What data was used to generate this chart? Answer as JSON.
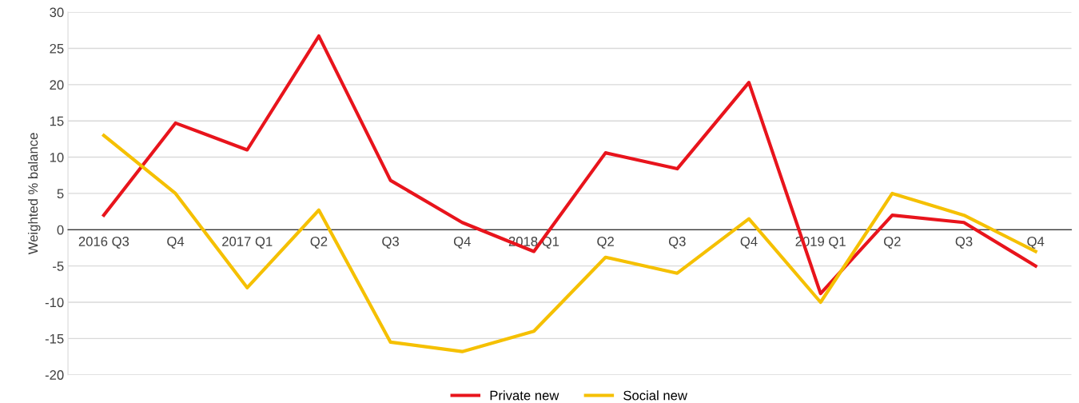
{
  "chart_data": {
    "type": "line",
    "ylabel": "Weighted % balance",
    "categories": [
      "2016 Q3",
      "Q4",
      "2017 Q1",
      "Q2",
      "Q3",
      "Q4",
      "2018 Q1",
      "Q2",
      "Q3",
      "Q4",
      "2019 Q1",
      "Q2",
      "Q3",
      "Q4"
    ],
    "series": [
      {
        "name": "Private new",
        "color": "#e8141c",
        "values": [
          2,
          14.7,
          11,
          26.7,
          6.8,
          1,
          -3,
          10.6,
          8.4,
          20.3,
          -8.8,
          2,
          1,
          -5
        ]
      },
      {
        "name": "Social new",
        "color": "#f5c000",
        "values": [
          13,
          5,
          -8,
          2.7,
          -15.5,
          -16.8,
          -14,
          -3.8,
          -6,
          1.5,
          -10,
          5,
          2,
          -3
        ]
      }
    ],
    "ylim": [
      -20,
      30
    ],
    "yticks": [
      -20,
      -15,
      -10,
      -5,
      0,
      5,
      10,
      15,
      20,
      25,
      30
    ],
    "grid": "y",
    "legend": "bottom",
    "marker": "none",
    "line_style": "solid"
  }
}
